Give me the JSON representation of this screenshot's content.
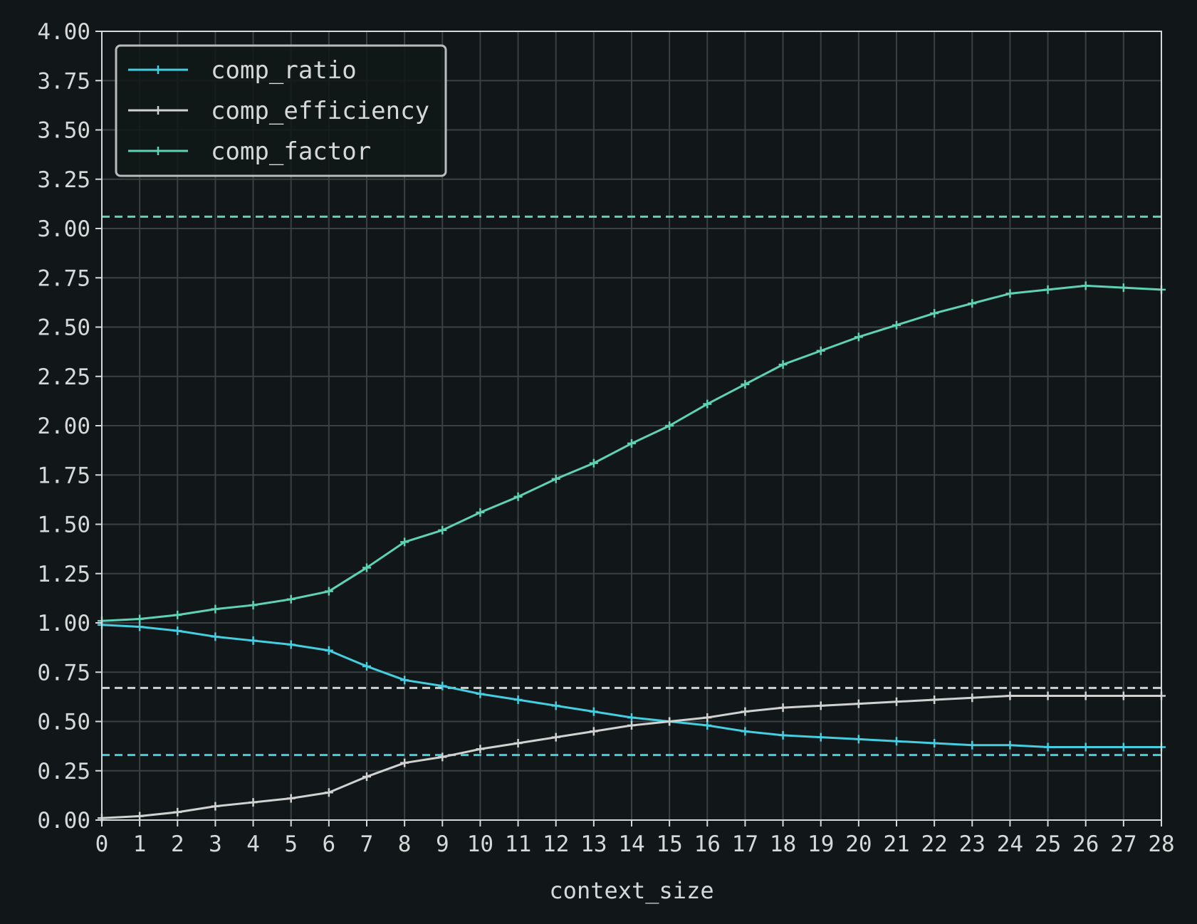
{
  "chart_data": {
    "type": "line",
    "xlabel": "context_size",
    "ylabel": "",
    "x": [
      0,
      1,
      2,
      3,
      4,
      5,
      6,
      7,
      8,
      9,
      10,
      11,
      12,
      13,
      14,
      15,
      16,
      17,
      18,
      19,
      20,
      21,
      22,
      23,
      24,
      25,
      26,
      27,
      28
    ],
    "xlim": [
      0,
      28
    ],
    "ylim": [
      0,
      4
    ],
    "yticks": [
      "0.00",
      "0.25",
      "0.50",
      "0.75",
      "1.00",
      "1.25",
      "1.50",
      "1.75",
      "2.00",
      "2.25",
      "2.50",
      "2.75",
      "3.00",
      "3.25",
      "3.50",
      "3.75",
      "4.00"
    ],
    "xticks": [
      "0",
      "1",
      "2",
      "3",
      "4",
      "5",
      "6",
      "7",
      "8",
      "9",
      "10",
      "11",
      "12",
      "13",
      "14",
      "15",
      "16",
      "17",
      "18",
      "19",
      "20",
      "21",
      "22",
      "23",
      "24",
      "25",
      "26",
      "27",
      "28"
    ],
    "grid": true,
    "legend_position": "top-left",
    "series": [
      {
        "name": "comp_ratio",
        "color": "#45cde0",
        "values": [
          0.99,
          0.98,
          0.96,
          0.93,
          0.91,
          0.89,
          0.86,
          0.78,
          0.71,
          0.68,
          0.64,
          0.61,
          0.58,
          0.55,
          0.52,
          0.5,
          0.48,
          0.45,
          0.43,
          0.42,
          0.41,
          0.4,
          0.39,
          0.38,
          0.38,
          0.37,
          0.37,
          0.37,
          0.37
        ]
      },
      {
        "name": "comp_efficiency",
        "color": "#d0d2d0",
        "values": [
          0.01,
          0.02,
          0.04,
          0.07,
          0.09,
          0.11,
          0.14,
          0.22,
          0.29,
          0.32,
          0.36,
          0.39,
          0.42,
          0.45,
          0.48,
          0.5,
          0.52,
          0.55,
          0.57,
          0.58,
          0.59,
          0.6,
          0.61,
          0.62,
          0.63,
          0.63,
          0.63,
          0.63,
          0.63
        ]
      },
      {
        "name": "comp_factor",
        "color": "#5fd1b5",
        "values": [
          1.01,
          1.02,
          1.04,
          1.07,
          1.09,
          1.12,
          1.16,
          1.28,
          1.41,
          1.47,
          1.56,
          1.64,
          1.73,
          1.81,
          1.91,
          2.0,
          2.11,
          2.21,
          2.31,
          2.38,
          2.45,
          2.51,
          2.57,
          2.62,
          2.67,
          2.69,
          2.71,
          2.7,
          2.69
        ]
      }
    ],
    "reference_lines": [
      {
        "y": 3.06,
        "color": "#5fd1b5",
        "style": "dashed"
      },
      {
        "y": 0.67,
        "color": "#d0d2d0",
        "style": "dashed"
      },
      {
        "y": 0.33,
        "color": "#45cde0",
        "style": "dashed"
      }
    ]
  }
}
